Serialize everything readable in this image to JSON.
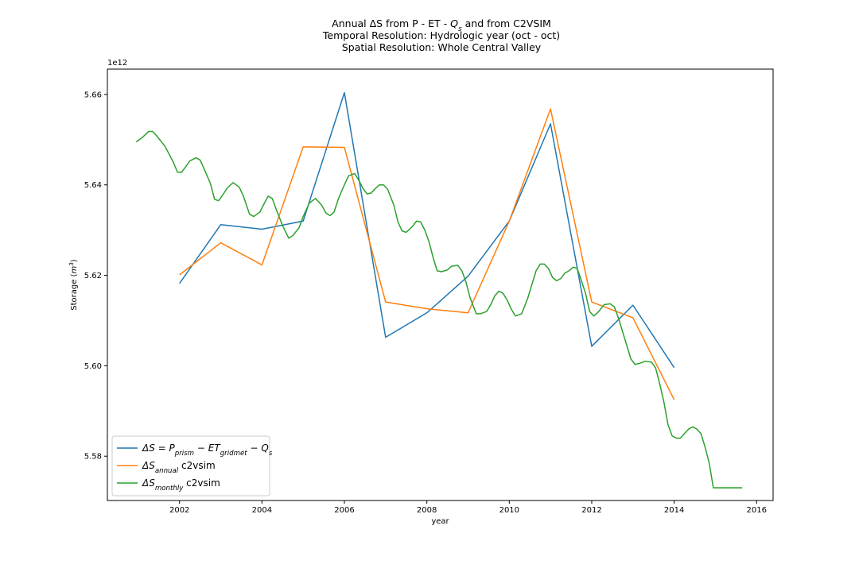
{
  "chart_data": {
    "type": "line",
    "title_lines": [
      [
        "Annual ΔS from P - ET - ",
        {
          "text": "Q",
          "italic": true
        },
        {
          "text": "s",
          "italic": true,
          "sub": true
        },
        " and from C2VSIM"
      ],
      [
        "Temporal Resolution: Hydrologic year (oct - oct)"
      ],
      [
        "Spatial Resolution: Whole Central Valley"
      ]
    ],
    "xlabel": "year",
    "ylabel": "Storage (m³)",
    "ylabel_parts": [
      "Storage (",
      {
        "text": "m",
        "italic": true
      },
      {
        "text": "3",
        "sup": true
      },
      ")"
    ],
    "offset_text": "1e12",
    "xlim": [
      2000.25,
      2016.4
    ],
    "ylim": [
      5.5702,
      5.6656
    ],
    "y_multiplier": 1000000000000.0,
    "x_ticks": [
      2002,
      2004,
      2006,
      2008,
      2010,
      2012,
      2014,
      2016
    ],
    "x_tick_labels": [
      "2002",
      "2004",
      "2006",
      "2008",
      "2010",
      "2012",
      "2014",
      "2016"
    ],
    "y_ticks": [
      5.58,
      5.6,
      5.62,
      5.64,
      5.66
    ],
    "y_tick_labels": [
      "5.58",
      "5.60",
      "5.62",
      "5.64",
      "5.66"
    ],
    "grid": false,
    "legend_position": "bottom-left",
    "series": [
      {
        "label_parts": [
          {
            "text": "ΔS = P",
            "italic": true
          },
          {
            "text": "prism",
            "italic": true,
            "sub": true
          },
          {
            "text": " − ET",
            "italic": true
          },
          {
            "text": "gridmet",
            "italic": true,
            "sub": true
          },
          {
            "text": " − Q",
            "italic": true
          },
          {
            "text": "s",
            "italic": true,
            "sub": true
          }
        ],
        "color": "#1f77b4",
        "x": [
          2002,
          2003,
          2004,
          2005,
          2006,
          2007,
          2008,
          2009,
          2010,
          2011,
          2012,
          2013,
          2014
        ],
        "y": [
          5.6182,
          5.6312,
          5.6302,
          5.632,
          5.6604,
          5.6063,
          5.6117,
          5.6198,
          5.632,
          5.6535,
          5.6043,
          5.6134,
          5.5996
        ]
      },
      {
        "label_parts": [
          {
            "text": "ΔS",
            "italic": true
          },
          {
            "text": "annual",
            "italic": true,
            "sub": true
          },
          " c2vsim"
        ],
        "color": "#ff7f0e",
        "x": [
          2002,
          2003,
          2004,
          2005,
          2006,
          2007,
          2008,
          2009,
          2010,
          2011,
          2012,
          2013,
          2014
        ],
        "y": [
          5.6201,
          5.6272,
          5.6223,
          5.6484,
          5.6483,
          5.6141,
          5.6126,
          5.6117,
          5.632,
          5.6568,
          5.6141,
          5.6106,
          5.5925
        ]
      },
      {
        "label_parts": [
          {
            "text": "ΔS",
            "italic": true
          },
          {
            "text": "monthly",
            "italic": true,
            "sub": true
          },
          " c2vsim"
        ],
        "color": "#2ca02c",
        "x": [
          2000.95,
          2001.1,
          2001.25,
          2001.35,
          2001.45,
          2001.65,
          2001.85,
          2001.95,
          2002.05,
          2002.15,
          2002.25,
          2002.4,
          2002.5,
          2002.6,
          2002.75,
          2002.85,
          2002.95,
          2003.05,
          2003.15,
          2003.3,
          2003.45,
          2003.55,
          2003.7,
          2003.8,
          2003.95,
          2004.05,
          2004.15,
          2004.25,
          2004.35,
          2004.5,
          2004.65,
          2004.75,
          2004.9,
          2005.0,
          2005.15,
          2005.3,
          2005.45,
          2005.55,
          2005.65,
          2005.75,
          2005.85,
          2005.95,
          2006.1,
          2006.25,
          2006.35,
          2006.45,
          2006.55,
          2006.65,
          2006.75,
          2006.85,
          2006.95,
          2007.05,
          2007.2,
          2007.3,
          2007.4,
          2007.5,
          2007.65,
          2007.75,
          2007.85,
          2007.95,
          2008.05,
          2008.15,
          2008.25,
          2008.35,
          2008.5,
          2008.6,
          2008.75,
          2008.85,
          2008.95,
          2009.05,
          2009.2,
          2009.3,
          2009.45,
          2009.55,
          2009.65,
          2009.75,
          2009.85,
          2009.95,
          2010.05,
          2010.15,
          2010.3,
          2010.45,
          2010.55,
          2010.65,
          2010.75,
          2010.85,
          2010.95,
          2011.05,
          2011.15,
          2011.25,
          2011.35,
          2011.45,
          2011.55,
          2011.65,
          2011.75,
          2011.85,
          2011.95,
          2012.05,
          2012.15,
          2012.3,
          2012.45,
          2012.55,
          2012.65,
          2012.75,
          2012.85,
          2012.95,
          2013.05,
          2013.15,
          2013.3,
          2013.45,
          2013.55,
          2013.65,
          2013.75,
          2013.85,
          2013.95,
          2014.05,
          2014.15,
          2014.25,
          2014.35,
          2014.45,
          2014.55,
          2014.65,
          2014.75,
          2014.85,
          2014.95,
          2015.05,
          2015.15,
          2015.25,
          2015.35,
          2015.45,
          2015.55,
          2015.65
        ],
        "y": [
          5.6495,
          5.6505,
          5.6518,
          5.6518,
          5.6508,
          5.6485,
          5.645,
          5.6428,
          5.6428,
          5.644,
          5.6453,
          5.646,
          5.6455,
          5.6435,
          5.6403,
          5.6368,
          5.6365,
          5.6378,
          5.6392,
          5.6405,
          5.6395,
          5.6375,
          5.6335,
          5.633,
          5.634,
          5.6358,
          5.6375,
          5.637,
          5.6345,
          5.631,
          5.6282,
          5.6288,
          5.6305,
          5.633,
          5.636,
          5.637,
          5.6355,
          5.6338,
          5.6332,
          5.634,
          5.6368,
          5.639,
          5.642,
          5.6425,
          5.641,
          5.6392,
          5.638,
          5.6382,
          5.6392,
          5.64,
          5.64,
          5.639,
          5.6355,
          5.6318,
          5.6298,
          5.6295,
          5.6308,
          5.632,
          5.6318,
          5.63,
          5.6275,
          5.624,
          5.621,
          5.6208,
          5.6212,
          5.622,
          5.6222,
          5.621,
          5.6185,
          5.615,
          5.6115,
          5.6115,
          5.612,
          5.6135,
          5.6155,
          5.6165,
          5.616,
          5.6145,
          5.6125,
          5.611,
          5.6115,
          5.615,
          5.618,
          5.621,
          5.6225,
          5.6225,
          5.6215,
          5.6195,
          5.6188,
          5.6193,
          5.6205,
          5.621,
          5.6218,
          5.6215,
          5.6188,
          5.616,
          5.612,
          5.611,
          5.6118,
          5.6135,
          5.6137,
          5.613,
          5.6105,
          5.6075,
          5.6045,
          5.6015,
          5.6003,
          5.6005,
          5.601,
          5.6008,
          5.5995,
          5.596,
          5.592,
          5.587,
          5.5845,
          5.584,
          5.584,
          5.585,
          5.586,
          5.5865,
          5.586,
          5.585,
          5.582,
          5.5785,
          5.573,
          5.573,
          5.573,
          5.573,
          5.573,
          5.573,
          5.573,
          5.573
        ]
      }
    ]
  }
}
